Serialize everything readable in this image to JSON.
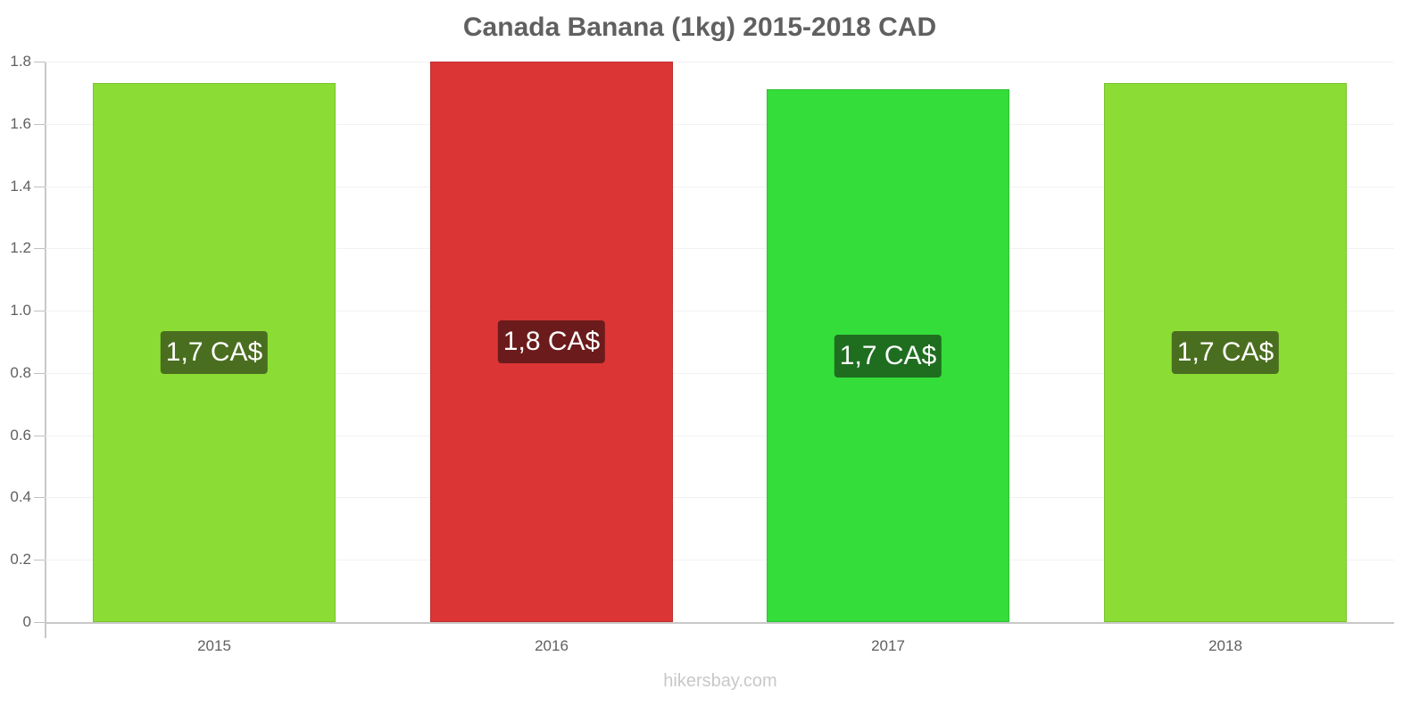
{
  "title": "Canada Banana (1kg) 2015-2018 CAD",
  "credit": "hikersbay.com",
  "y_ticks": [
    "0",
    "0.2",
    "0.4",
    "0.6",
    "0.8",
    "1.0",
    "1.2",
    "1.4",
    "1.6",
    "1.8"
  ],
  "bars": [
    {
      "year": "2015",
      "label": "1,7 CA$",
      "value": 1.73,
      "color": "#8bdd35",
      "label_bg": "#4a6e1f"
    },
    {
      "year": "2016",
      "label": "1,8 CA$",
      "value": 1.8,
      "color": "#db3535",
      "label_bg": "#6b1b1b"
    },
    {
      "year": "2017",
      "label": "1,7 CA$",
      "value": 1.71,
      "color": "#35dd3a",
      "label_bg": "#1f6e20"
    },
    {
      "year": "2018",
      "label": "1,7 CA$",
      "value": 1.73,
      "color": "#8bdd35",
      "label_bg": "#4a6e1f"
    }
  ],
  "chart_data": {
    "type": "bar",
    "title": "Canada Banana (1kg) 2015-2018 CAD",
    "categories": [
      "2015",
      "2016",
      "2017",
      "2018"
    ],
    "values": [
      1.73,
      1.8,
      1.71,
      1.73
    ],
    "data_labels": [
      "1,7 CA$",
      "1,8 CA$",
      "1,7 CA$",
      "1,7 CA$"
    ],
    "bar_colors": [
      "#8bdd35",
      "#db3535",
      "#35dd3a",
      "#8bdd35"
    ],
    "xlabel": "",
    "ylabel": "",
    "ylim": [
      0,
      1.8
    ],
    "yticks": [
      0,
      0.2,
      0.4,
      0.6,
      0.8,
      1.0,
      1.2,
      1.4,
      1.6,
      1.8
    ],
    "grid": true,
    "legend": "none",
    "source": "hikersbay.com"
  }
}
